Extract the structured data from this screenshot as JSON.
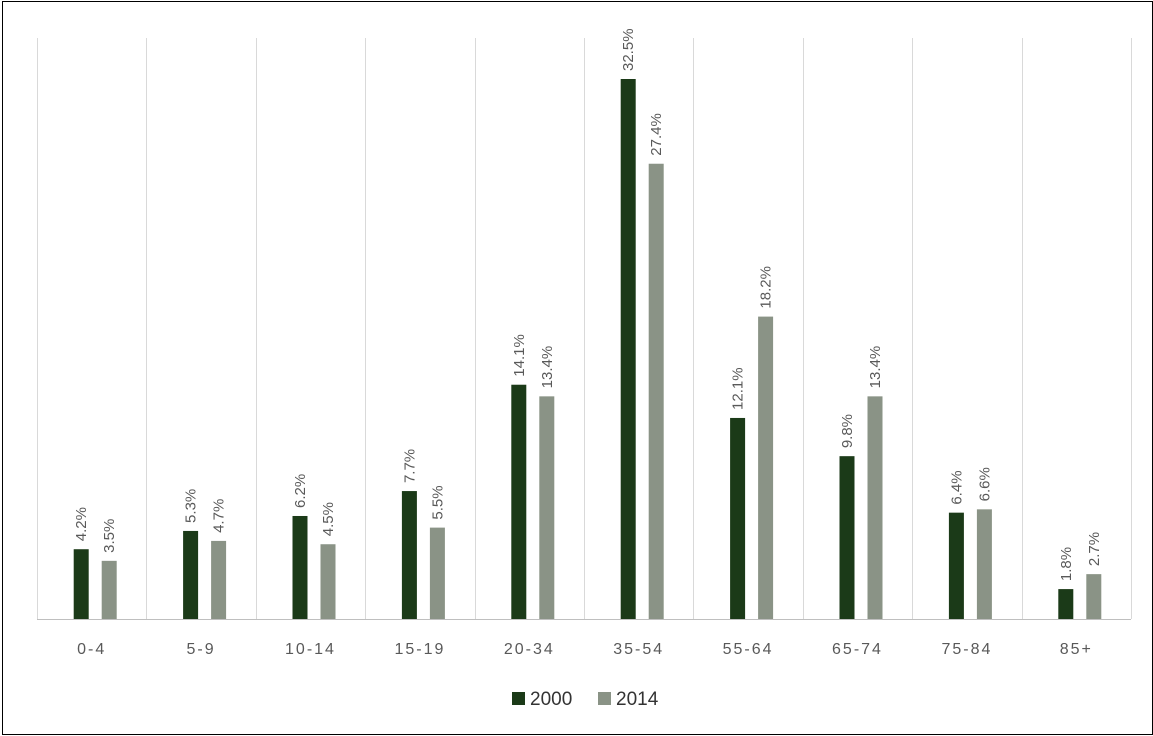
{
  "chart_data": {
    "type": "bar",
    "categories": [
      "0-4",
      "5-9",
      "10-14",
      "15-19",
      "20-34",
      "35-54",
      "55-64",
      "65-74",
      "75-84",
      "85+"
    ],
    "series": [
      {
        "name": "2000",
        "color": "#1b3a18",
        "values": [
          4.2,
          5.3,
          6.2,
          7.7,
          14.1,
          32.5,
          12.1,
          9.8,
          6.4,
          1.8
        ],
        "labels": [
          "4.2%",
          "5.3%",
          "6.2%",
          "7.7%",
          "14.1%",
          "32.5%",
          "12.1%",
          "9.8%",
          "6.4%",
          "1.8%"
        ]
      },
      {
        "name": "2014",
        "color": "#8a9386",
        "values": [
          3.5,
          4.7,
          4.5,
          5.5,
          13.4,
          27.4,
          18.2,
          13.4,
          6.6,
          2.7
        ],
        "labels": [
          "3.5%",
          "4.7%",
          "4.5%",
          "5.5%",
          "13.4%",
          "27.4%",
          "18.2%",
          "13.4%",
          "6.6%",
          "2.7%"
        ]
      }
    ],
    "ylim": [
      0,
      35
    ],
    "grid": true,
    "legend": "bottom"
  }
}
